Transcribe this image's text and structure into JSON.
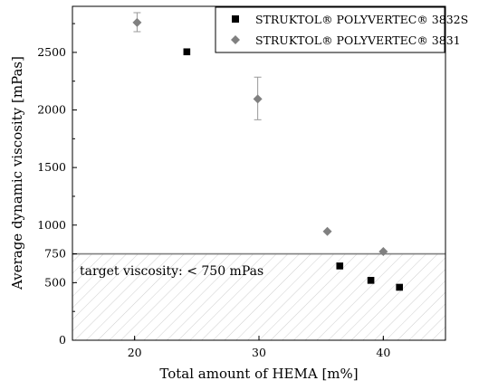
{
  "chart_data": {
    "type": "scatter",
    "xlabel": "Total amount of HEMA [m%]",
    "ylabel": "Average dynamic viscosity [mPas]",
    "xlim": [
      15,
      45
    ],
    "ylim": [
      0,
      2900
    ],
    "x_ticks": [
      20,
      30,
      40
    ],
    "y_ticks": [
      0,
      500,
      750,
      1000,
      1500,
      2000,
      2500
    ],
    "x_tick_labels": [
      "20",
      "30",
      "40"
    ],
    "y_tick_labels": [
      "0",
      "500",
      "750",
      "1000",
      "1500",
      "2000",
      "2500"
    ],
    "grid": false,
    "legend_position": "top-right",
    "series": [
      {
        "name": "STRUKTOL® POLYVERTEC® 3832S",
        "marker": "square",
        "color": "#000000",
        "x": [
          24.2,
          36.5,
          39.0,
          41.3
        ],
        "y": [
          2505,
          645,
          520,
          460
        ]
      },
      {
        "name": "STRUKTOL® POLYVERTEC® 3831",
        "marker": "diamond",
        "color": "#808080",
        "x": [
          20.2,
          29.9,
          35.5,
          40.0
        ],
        "y": [
          2760,
          2095,
          945,
          770
        ],
        "error_bars": [
          [
            2680,
            2845
          ],
          [
            1915,
            2285
          ],
          [
            null,
            null
          ],
          [
            null,
            null
          ]
        ]
      }
    ],
    "threshold": {
      "value": 750,
      "label": "target viscosity: < 750 mPas",
      "color": "#808080",
      "hatch_color": "#cfcfcf"
    }
  }
}
